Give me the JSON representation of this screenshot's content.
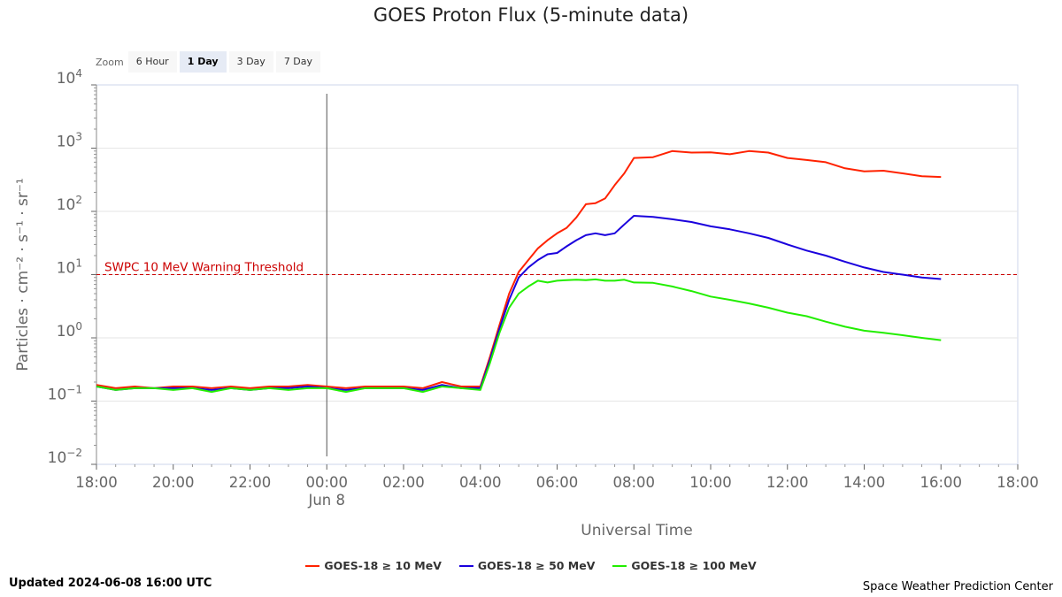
{
  "title": "GOES Proton Flux (5-minute data)",
  "zoom": {
    "label": "Zoom",
    "buttons": [
      "6 Hour",
      "1 Day",
      "3 Day",
      "7 Day"
    ],
    "active": "1 Day"
  },
  "footer": {
    "updated": "Updated 2024-06-08 16:00 UTC",
    "credits": "Space Weather Prediction Center"
  },
  "chart_data": {
    "type": "line",
    "xlabel": "Universal Time",
    "ylabel": "Particles · cm⁻² · s⁻¹ · sr⁻¹",
    "yscale": "log",
    "ylim": [
      0.01,
      10000
    ],
    "xlim": [
      0,
      24
    ],
    "x_ticks": [
      "18:00",
      "20:00",
      "22:00",
      "00:00",
      "02:00",
      "04:00",
      "06:00",
      "08:00",
      "10:00",
      "12:00",
      "14:00",
      "16:00",
      "18:00"
    ],
    "date_label": "Jun 8",
    "y_ticks": [
      {
        "base": "10",
        "exp": "4"
      },
      {
        "base": "10",
        "exp": "3"
      },
      {
        "base": "10",
        "exp": "2"
      },
      {
        "base": "10",
        "exp": "1"
      },
      {
        "base": "10",
        "exp": "0"
      },
      {
        "base": "10",
        "exp": "−1"
      },
      {
        "base": "10",
        "exp": "−2"
      }
    ],
    "threshold": {
      "label": "SWPC 10 MeV Warning Threshold",
      "value": 10,
      "color": "#cc0000"
    },
    "grid": true,
    "legend_position": "bottom",
    "series": [
      {
        "name": "GOES-18 ≥ 10 MeV",
        "color": "#ff2200",
        "x": [
          0,
          0.5,
          1,
          1.5,
          2,
          2.5,
          3,
          3.5,
          4,
          4.5,
          5,
          5.5,
          6,
          6.5,
          7,
          7.5,
          8,
          8.5,
          9,
          9.5,
          10,
          10.25,
          10.5,
          10.75,
          11,
          11.25,
          11.5,
          11.75,
          12,
          12.25,
          12.5,
          12.75,
          13,
          13.25,
          13.5,
          13.75,
          14,
          14.5,
          15,
          15.5,
          16,
          16.5,
          17,
          17.5,
          18,
          18.5,
          19,
          19.5,
          20,
          20.5,
          21,
          21.5,
          22
        ],
        "y": [
          0.18,
          0.16,
          0.17,
          0.16,
          0.17,
          0.17,
          0.16,
          0.17,
          0.16,
          0.17,
          0.17,
          0.18,
          0.17,
          0.16,
          0.17,
          0.17,
          0.17,
          0.16,
          0.2,
          0.17,
          0.17,
          0.5,
          1.6,
          5,
          11,
          17,
          26,
          35,
          45,
          55,
          80,
          130,
          135,
          160,
          260,
          400,
          700,
          720,
          900,
          850,
          860,
          800,
          900,
          850,
          700,
          650,
          600,
          480,
          430,
          440,
          400,
          360,
          350
        ]
      },
      {
        "name": "GOES-18 ≥ 50 MeV",
        "color": "#1a00dd",
        "x": [
          0,
          0.5,
          1,
          1.5,
          2,
          2.5,
          3,
          3.5,
          4,
          4.5,
          5,
          5.5,
          6,
          6.5,
          7,
          7.5,
          8,
          8.5,
          9,
          9.5,
          10,
          10.25,
          10.5,
          10.75,
          11,
          11.25,
          11.5,
          11.75,
          12,
          12.25,
          12.5,
          12.75,
          13,
          13.25,
          13.5,
          13.75,
          14,
          14.5,
          15,
          15.5,
          16,
          16.5,
          17,
          17.5,
          18,
          18.5,
          19,
          19.5,
          20,
          20.5,
          21,
          21.5,
          22
        ],
        "y": [
          0.17,
          0.15,
          0.16,
          0.16,
          0.16,
          0.16,
          0.15,
          0.16,
          0.15,
          0.16,
          0.16,
          0.17,
          0.16,
          0.15,
          0.16,
          0.16,
          0.16,
          0.15,
          0.18,
          0.16,
          0.16,
          0.45,
          1.4,
          4,
          9,
          13,
          17,
          21,
          22,
          28,
          35,
          42,
          45,
          42,
          45,
          62,
          85,
          82,
          75,
          68,
          58,
          52,
          45,
          38,
          30,
          24,
          20,
          16,
          13,
          11,
          10,
          9,
          8.5
        ]
      },
      {
        "name": "GOES-18 ≥ 100 MeV",
        "color": "#22ee00",
        "x": [
          0,
          0.5,
          1,
          1.5,
          2,
          2.5,
          3,
          3.5,
          4,
          4.5,
          5,
          5.5,
          6,
          6.5,
          7,
          7.5,
          8,
          8.5,
          9,
          9.5,
          10,
          10.25,
          10.5,
          10.75,
          11,
          11.25,
          11.5,
          11.75,
          12,
          12.25,
          12.5,
          12.75,
          13,
          13.25,
          13.5,
          13.75,
          14,
          14.5,
          15,
          15.5,
          16,
          16.5,
          17,
          17.5,
          18,
          18.5,
          19,
          19.5,
          20,
          20.5,
          21,
          21.5,
          22
        ],
        "y": [
          0.17,
          0.15,
          0.16,
          0.16,
          0.15,
          0.16,
          0.14,
          0.16,
          0.15,
          0.16,
          0.15,
          0.16,
          0.16,
          0.14,
          0.16,
          0.16,
          0.16,
          0.14,
          0.17,
          0.16,
          0.15,
          0.4,
          1.2,
          3,
          5,
          6.5,
          8,
          7.5,
          8,
          8.2,
          8.3,
          8.2,
          8.4,
          8,
          8,
          8.3,
          7.5,
          7.4,
          6.5,
          5.5,
          4.5,
          4,
          3.5,
          3,
          2.5,
          2.2,
          1.8,
          1.5,
          1.3,
          1.2,
          1.1,
          1.0,
          0.92
        ]
      }
    ]
  }
}
